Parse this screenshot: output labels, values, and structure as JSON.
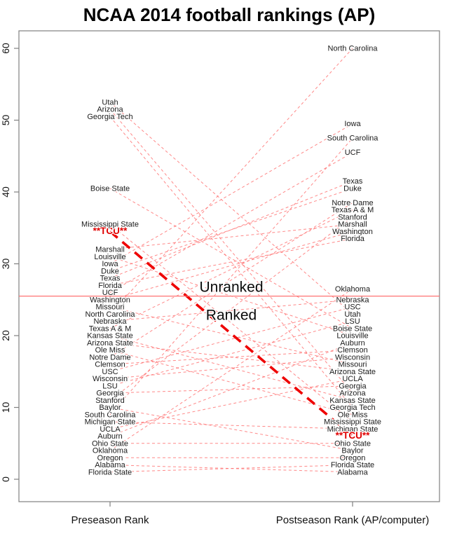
{
  "title": "NCAA 2014 football rankings (AP)",
  "chart_data": {
    "type": "slope",
    "title": "NCAA 2014 football rankings (AP)",
    "x_axis": {
      "columns": [
        {
          "key": "pre",
          "label": "Preseason Rank"
        },
        {
          "key": "post",
          "label": "Postseason Rank (AP/computer)"
        }
      ]
    },
    "y_axis": {
      "ticks": [
        0,
        10,
        20,
        30,
        40,
        50,
        60
      ],
      "range_shown": [
        -3,
        62.5
      ]
    },
    "cutoff": {
      "value": 25.5,
      "above_label": "Unranked",
      "below_label": "Ranked"
    },
    "highlight": {
      "team": "TCU",
      "display_label": "**TCU**"
    },
    "teams": [
      {
        "name": "Florida State",
        "pre": 1,
        "post": 2
      },
      {
        "name": "Alabama",
        "pre": 2,
        "post": 1
      },
      {
        "name": "Oregon",
        "pre": 3,
        "post": 3
      },
      {
        "name": "Oklahoma",
        "pre": 4,
        "post": 26.5
      },
      {
        "name": "Ohio State",
        "pre": 5,
        "post": 5
      },
      {
        "name": "Auburn",
        "pre": 6,
        "post": 19
      },
      {
        "name": "UCLA",
        "pre": 7,
        "post": 14
      },
      {
        "name": "Michigan State",
        "pre": 8,
        "post": 7
      },
      {
        "name": "South Carolina",
        "pre": 9,
        "post": 47.5
      },
      {
        "name": "Baylor",
        "pre": 10,
        "post": 4
      },
      {
        "name": "Stanford",
        "pre": 11,
        "post": 36.5
      },
      {
        "name": "Georgia",
        "pre": 12,
        "post": 13
      },
      {
        "name": "LSU",
        "pre": 13,
        "post": 22
      },
      {
        "name": "Wisconsin",
        "pre": 14,
        "post": 17
      },
      {
        "name": "USC",
        "pre": 15,
        "post": 24
      },
      {
        "name": "Clemson",
        "pre": 16,
        "post": 18
      },
      {
        "name": "Notre Dame",
        "pre": 17,
        "post": 38.5
      },
      {
        "name": "Ole Miss",
        "pre": 18,
        "post": 9
      },
      {
        "name": "Arizona State",
        "pre": 19,
        "post": 15
      },
      {
        "name": "Kansas State",
        "pre": 20,
        "post": 11
      },
      {
        "name": "Texas A & M",
        "pre": 21,
        "post": 37.5
      },
      {
        "name": "Nebraska",
        "pre": 22,
        "post": 25
      },
      {
        "name": "North Carolina",
        "pre": 23,
        "post": 60
      },
      {
        "name": "Missouri",
        "pre": 24,
        "post": 16
      },
      {
        "name": "Washington",
        "pre": 25,
        "post": 34.5
      },
      {
        "name": "UCF",
        "pre": 26,
        "post": 45.5
      },
      {
        "name": "Florida",
        "pre": 27,
        "post": 33.5
      },
      {
        "name": "Texas",
        "pre": 28,
        "post": 41.5
      },
      {
        "name": "Duke",
        "pre": 29,
        "post": 40.5
      },
      {
        "name": "Iowa",
        "pre": 30,
        "post": 49.5
      },
      {
        "name": "Louisville",
        "pre": 31,
        "post": 20
      },
      {
        "name": "Marshall",
        "pre": 32,
        "post": 35.5
      },
      {
        "name": "TCU",
        "pre": 34.5,
        "post": 6,
        "highlight": true
      },
      {
        "name": "Mississippi State",
        "pre": 35.5,
        "post": 8
      },
      {
        "name": "Boise State",
        "pre": 40.5,
        "post": 21
      },
      {
        "name": "Georgia Tech",
        "pre": 50.5,
        "post": 10
      },
      {
        "name": "Arizona",
        "pre": 51.5,
        "post": 12
      },
      {
        "name": "Utah",
        "pre": 52.5,
        "post": 23
      }
    ],
    "colors": {
      "line": "#ff6b6b",
      "highlight_line": "#ee0000",
      "highlight_label": "#e00000",
      "cutoff_line": "#ff7373",
      "label": "#1a1a1a",
      "box": "#808080"
    },
    "legend_position": "none",
    "grid": false
  }
}
